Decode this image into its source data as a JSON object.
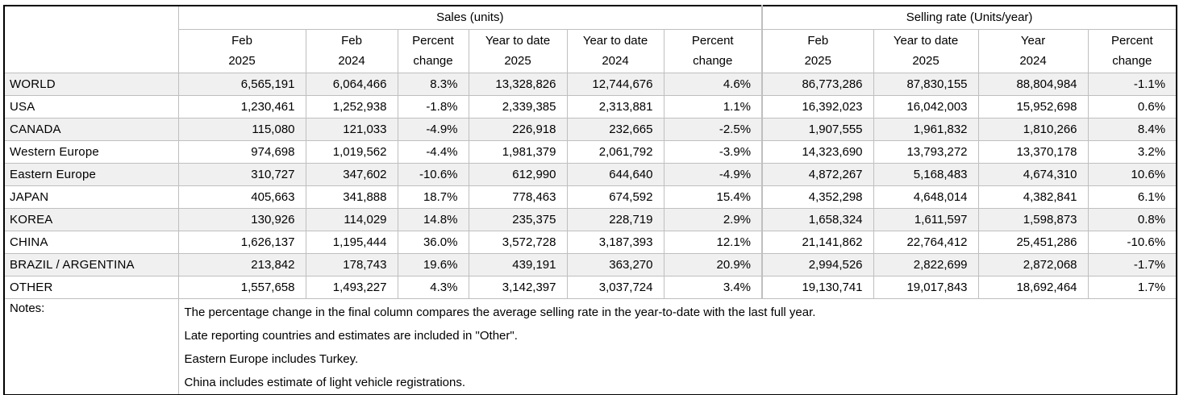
{
  "table": {
    "corner_label": "",
    "groups": [
      {
        "label": "Sales (units)",
        "span": 6
      },
      {
        "label": "Selling rate (Units/year)",
        "span": 4
      }
    ],
    "columns": [
      {
        "line1": "Feb",
        "line2": "2025"
      },
      {
        "line1": "Feb",
        "line2": "2024"
      },
      {
        "line1": "Percent",
        "line2": "change"
      },
      {
        "line1": "Year to date",
        "line2": "2025"
      },
      {
        "line1": "Year to date",
        "line2": "2024"
      },
      {
        "line1": "Percent",
        "line2": "change"
      },
      {
        "line1": "Feb",
        "line2": "2025"
      },
      {
        "line1": "Year to date",
        "line2": "2025"
      },
      {
        "line1": "Year",
        "line2": "2024"
      },
      {
        "line1": "Percent",
        "line2": "change"
      }
    ],
    "rows": [
      {
        "region": "WORLD",
        "values": [
          "6,565,191",
          "6,064,466",
          "8.3%",
          "13,328,826",
          "12,744,676",
          "4.6%",
          "86,773,286",
          "87,830,155",
          "88,804,984",
          "-1.1%"
        ]
      },
      {
        "region": "USA",
        "values": [
          "1,230,461",
          "1,252,938",
          "-1.8%",
          "2,339,385",
          "2,313,881",
          "1.1%",
          "16,392,023",
          "16,042,003",
          "15,952,698",
          "0.6%"
        ]
      },
      {
        "region": "CANADA",
        "values": [
          "115,080",
          "121,033",
          "-4.9%",
          "226,918",
          "232,665",
          "-2.5%",
          "1,907,555",
          "1,961,832",
          "1,810,266",
          "8.4%"
        ]
      },
      {
        "region": "Western Europe",
        "values": [
          "974,698",
          "1,019,562",
          "-4.4%",
          "1,981,379",
          "2,061,792",
          "-3.9%",
          "14,323,690",
          "13,793,272",
          "13,370,178",
          "3.2%"
        ]
      },
      {
        "region": "Eastern Europe",
        "values": [
          "310,727",
          "347,602",
          "-10.6%",
          "612,990",
          "644,640",
          "-4.9%",
          "4,872,267",
          "5,168,483",
          "4,674,310",
          "10.6%"
        ]
      },
      {
        "region": "JAPAN",
        "values": [
          "405,663",
          "341,888",
          "18.7%",
          "778,463",
          "674,592",
          "15.4%",
          "4,352,298",
          "4,648,014",
          "4,382,841",
          "6.1%"
        ]
      },
      {
        "region": "KOREA",
        "values": [
          "130,926",
          "114,029",
          "14.8%",
          "235,375",
          "228,719",
          "2.9%",
          "1,658,324",
          "1,611,597",
          "1,598,873",
          "0.8%"
        ]
      },
      {
        "region": "CHINA",
        "values": [
          "1,626,137",
          "1,195,444",
          "36.0%",
          "3,572,728",
          "3,187,393",
          "12.1%",
          "21,141,862",
          "22,764,412",
          "25,451,286",
          "-10.6%"
        ]
      },
      {
        "region": "BRAZIL / ARGENTINA",
        "values": [
          "213,842",
          "178,743",
          "19.6%",
          "439,191",
          "363,270",
          "20.9%",
          "2,994,526",
          "2,822,699",
          "2,872,068",
          "-1.7%"
        ]
      },
      {
        "region": "OTHER",
        "values": [
          "1,557,658",
          "1,493,227",
          "4.3%",
          "3,142,397",
          "3,037,724",
          "3.4%",
          "19,130,741",
          "19,017,843",
          "18,692,464",
          "1.7%"
        ]
      }
    ],
    "notes_label": "Notes:",
    "notes": [
      "The percentage change in the final column compares the average selling rate in the year-to-date with the last full year.",
      "Late reporting countries and estimates are included in \"Other\".",
      "Eastern Europe includes Turkey.",
      "China includes estimate of light vehicle registrations."
    ]
  },
  "colors": {
    "stripe": "#F0F0F0",
    "grid": "#BFBFBF",
    "outer_border": "#000000",
    "text": "#000000",
    "background": "#FFFFFF"
  }
}
